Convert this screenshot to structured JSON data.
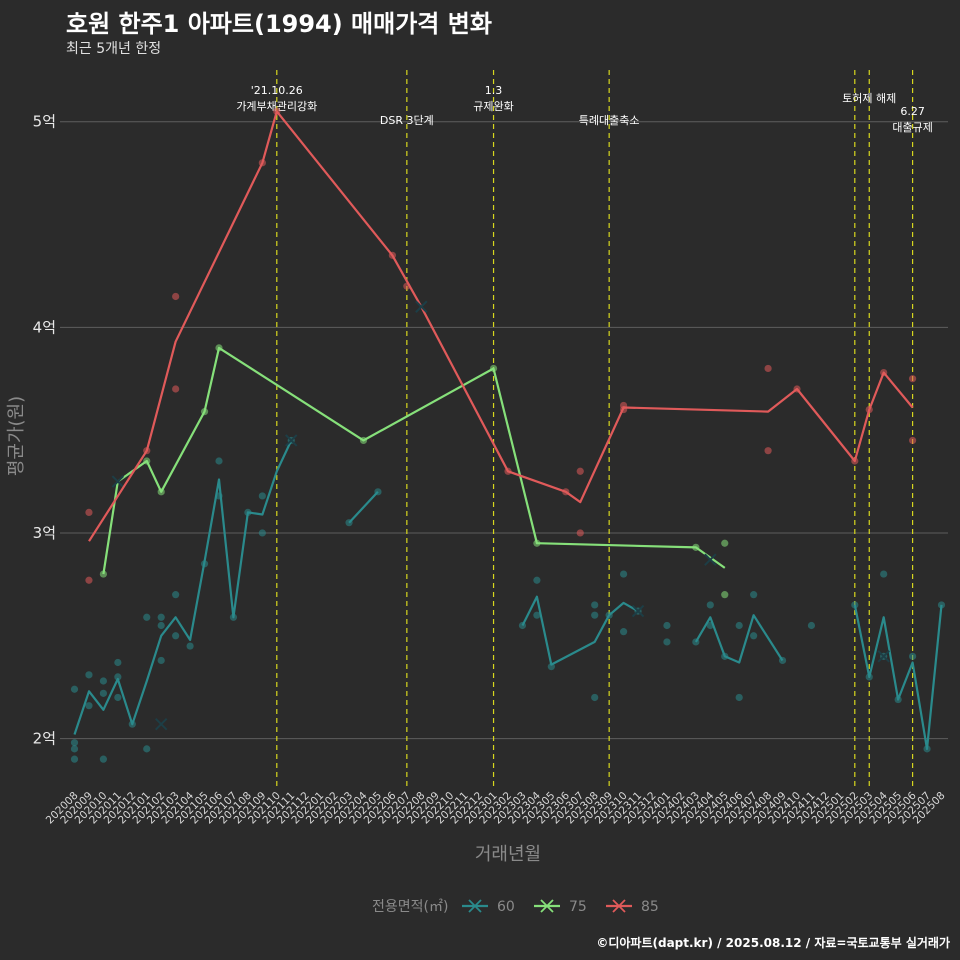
{
  "header": {
    "title": "호원 한주1 아파트(1994) 매매가격 변화",
    "subtitle": "최근 5개년 한정"
  },
  "caption": "©디아파트(dapt.kr) / 2025.08.12 / 자료=국토교통부 실거래가",
  "colors": {
    "background": "#2b2b2b",
    "grid": "#5e5e5e",
    "event_line": "#d7d71e",
    "60": "#2a8a8c",
    "75": "#86e07a",
    "85": "#e05a5a"
  },
  "chart_data": {
    "type": "line",
    "title": "호원 한주1 아파트(1994) 매매가격 변화",
    "subtitle": "최근 5개년 한정",
    "xlabel": "거래년월",
    "ylabel": "평균가(원)",
    "ylim": [
      1.75,
      5.3
    ],
    "yticks": [
      {
        "v": 2,
        "label": "2억"
      },
      {
        "v": 3,
        "label": "3억"
      },
      {
        "v": 4,
        "label": "4억"
      },
      {
        "v": 5,
        "label": "5억"
      }
    ],
    "grid": "horizontal",
    "categories": [
      "202008",
      "202009",
      "202010",
      "202011",
      "202012",
      "202101",
      "202102",
      "202103",
      "202104",
      "202105",
      "202106",
      "202107",
      "202108",
      "202109",
      "202110",
      "202111",
      "202112",
      "202201",
      "202202",
      "202203",
      "202204",
      "202205",
      "202206",
      "202207",
      "202208",
      "202209",
      "202210",
      "202211",
      "202212",
      "202301",
      "202302",
      "202303",
      "202304",
      "202305",
      "202306",
      "202307",
      "202308",
      "202309",
      "202310",
      "202311",
      "202312",
      "202401",
      "202402",
      "202403",
      "202404",
      "202405",
      "202406",
      "202407",
      "202408",
      "202409",
      "202410",
      "202411",
      "202412",
      "202501",
      "202502",
      "202503",
      "202504",
      "202505",
      "202506",
      "202507",
      "202508"
    ],
    "legend": {
      "title": "전용면적(㎡)",
      "position": "bottom",
      "entries": [
        "60",
        "75",
        "85"
      ]
    },
    "events": [
      {
        "x": "202110",
        "label": "'21.10.26\n가계부채관리강화",
        "row": 1
      },
      {
        "x": "202207",
        "label": "DSR 3단계",
        "row": 2
      },
      {
        "x": "202301",
        "label": "1.3\n규제완화",
        "row": 1
      },
      {
        "x": "202309",
        "label": "특례대출축소",
        "row": 2
      },
      {
        "x": "202502",
        "label": "",
        "row": 0
      },
      {
        "x": "202503",
        "label": "토허제 해제",
        "row": 3
      },
      {
        "x": "202506",
        "label": "6.27\n대출규제",
        "row": 4
      }
    ],
    "series": [
      {
        "name": "60",
        "segments": [
          [
            [
              "202008",
              2.02
            ],
            [
              "202009",
              2.23
            ],
            [
              "202010",
              2.14
            ],
            [
              "202011",
              2.29
            ],
            [
              "202012",
              2.07
            ],
            [
              "202101",
              2.28
            ],
            [
              "202102",
              2.5
            ],
            [
              "202103",
              2.59
            ],
            [
              "202104",
              2.48
            ],
            [
              "202105",
              2.86
            ],
            [
              "202106",
              3.26
            ],
            [
              "202107",
              2.59
            ],
            [
              "202108",
              3.1
            ],
            [
              "202109",
              3.09
            ],
            [
              "202110",
              3.3
            ],
            [
              "202111",
              3.45
            ]
          ],
          [
            [
              "202203",
              3.05
            ],
            [
              "202205",
              3.2
            ]
          ],
          [
            [
              "202303",
              2.55
            ],
            [
              "202304",
              2.69
            ],
            [
              "202305",
              2.36
            ],
            [
              "202308",
              2.47
            ],
            [
              "202309",
              2.6
            ],
            [
              "202310",
              2.66
            ],
            [
              "202311",
              2.62
            ]
          ],
          [
            [
              "202403",
              2.47
            ],
            [
              "202404",
              2.59
            ],
            [
              "202405",
              2.4
            ],
            [
              "202406",
              2.37
            ],
            [
              "202407",
              2.6
            ],
            [
              "202409",
              2.38
            ]
          ],
          [
            [
              "202502",
              2.65
            ],
            [
              "202503",
              2.3
            ],
            [
              "202504",
              2.59
            ],
            [
              "202505",
              2.19
            ],
            [
              "202506",
              2.37
            ],
            [
              "202507",
              1.95
            ],
            [
              "202508",
              2.65
            ]
          ]
        ],
        "points": [
          [
            "202008",
            1.9
          ],
          [
            "202008",
            1.95
          ],
          [
            "202008",
            1.98
          ],
          [
            "202008",
            2.24
          ],
          [
            "202009",
            2.16
          ],
          [
            "202009",
            2.31
          ],
          [
            "202010",
            1.9
          ],
          [
            "202010",
            2.22
          ],
          [
            "202010",
            2.28
          ],
          [
            "202011",
            2.2
          ],
          [
            "202011",
            2.3
          ],
          [
            "202011",
            2.37
          ],
          [
            "202012",
            2.07
          ],
          [
            "202101",
            1.95
          ],
          [
            "202101",
            2.59
          ],
          [
            "202102",
            2.38
          ],
          [
            "202102",
            2.55
          ],
          [
            "202102",
            2.59
          ],
          [
            "202103",
            2.5
          ],
          [
            "202103",
            2.7
          ],
          [
            "202104",
            2.45
          ],
          [
            "202105",
            2.85
          ],
          [
            "202106",
            3.18
          ],
          [
            "202106",
            3.35
          ],
          [
            "202107",
            2.59
          ],
          [
            "202108",
            3.1
          ],
          [
            "202109",
            3.0
          ],
          [
            "202109",
            3.18
          ],
          [
            "202111",
            3.45
          ],
          [
            "202203",
            3.05
          ],
          [
            "202205",
            3.2
          ],
          [
            "202303",
            2.55
          ],
          [
            "202304",
            2.6
          ],
          [
            "202304",
            2.77
          ],
          [
            "202305",
            2.35
          ],
          [
            "202308",
            2.2
          ],
          [
            "202308",
            2.6
          ],
          [
            "202308",
            2.65
          ],
          [
            "202309",
            2.6
          ],
          [
            "202310",
            2.52
          ],
          [
            "202310",
            2.8
          ],
          [
            "202311",
            2.62
          ],
          [
            "202401",
            2.47
          ],
          [
            "202401",
            2.55
          ],
          [
            "202403",
            2.47
          ],
          [
            "202404",
            2.55
          ],
          [
            "202404",
            2.65
          ],
          [
            "202405",
            2.4
          ],
          [
            "202406",
            2.2
          ],
          [
            "202406",
            2.55
          ],
          [
            "202407",
            2.5
          ],
          [
            "202407",
            2.7
          ],
          [
            "202409",
            2.38
          ],
          [
            "202411",
            2.55
          ],
          [
            "202502",
            2.65
          ],
          [
            "202503",
            2.3
          ],
          [
            "202504",
            2.4
          ],
          [
            "202504",
            2.8
          ],
          [
            "202505",
            2.19
          ],
          [
            "202506",
            2.4
          ],
          [
            "202507",
            1.95
          ],
          [
            "202508",
            2.65
          ]
        ],
        "crosses": [
          [
            "202102",
            2.07
          ],
          [
            "202111",
            3.45
          ],
          [
            "202311",
            2.62
          ],
          [
            "202504",
            2.4
          ]
        ]
      },
      {
        "name": "75",
        "segments": [
          [
            [
              "202010",
              2.8
            ],
            [
              "202011",
              3.25
            ],
            [
              "202101",
              3.35
            ],
            [
              "202102",
              3.2
            ],
            [
              "202105",
              3.59
            ],
            [
              "202106",
              3.9
            ],
            [
              "202204",
              3.45
            ],
            [
              "202301",
              3.8
            ],
            [
              "202304",
              2.95
            ],
            [
              "202403",
              2.93
            ],
            [
              "202405",
              2.83
            ]
          ]
        ],
        "points": [
          [
            "202010",
            2.8
          ],
          [
            "202101",
            3.35
          ],
          [
            "202102",
            3.2
          ],
          [
            "202105",
            3.59
          ],
          [
            "202106",
            3.9
          ],
          [
            "202204",
            3.45
          ],
          [
            "202301",
            3.8
          ],
          [
            "202304",
            2.95
          ],
          [
            "202403",
            2.93
          ],
          [
            "202405",
            2.95
          ],
          [
            "202405",
            2.7
          ]
        ],
        "crosses": [
          [
            "202011",
            3.25
          ],
          [
            "202404",
            2.87
          ]
        ]
      },
      {
        "name": "85",
        "segments": [
          [
            [
              "202009",
              2.96
            ],
            [
              "202101",
              3.4
            ],
            [
              "202103",
              3.93
            ],
            [
              "202109",
              4.8
            ],
            [
              "202110",
              5.05
            ],
            [
              "202206",
              4.35
            ],
            [
              "202208",
              4.1
            ],
            [
              "202302",
              3.3
            ],
            [
              "202306",
              3.2
            ],
            [
              "202307",
              3.15
            ],
            [
              "202310",
              3.61
            ],
            [
              "202408",
              3.59
            ],
            [
              "202410",
              3.7
            ],
            [
              "202502",
              3.35
            ],
            [
              "202503",
              3.6
            ],
            [
              "202504",
              3.78
            ],
            [
              "202506",
              3.61
            ]
          ]
        ],
        "points": [
          [
            "202009",
            2.77
          ],
          [
            "202009",
            3.1
          ],
          [
            "202101",
            3.4
          ],
          [
            "202103",
            3.7
          ],
          [
            "202103",
            4.15
          ],
          [
            "202109",
            4.8
          ],
          [
            "202110",
            5.05
          ],
          [
            "202206",
            4.35
          ],
          [
            "202207",
            4.2
          ],
          [
            "202302",
            3.3
          ],
          [
            "202306",
            3.2
          ],
          [
            "202307",
            3.0
          ],
          [
            "202307",
            3.3
          ],
          [
            "202310",
            3.6
          ],
          [
            "202310",
            3.62
          ],
          [
            "202408",
            3.4
          ],
          [
            "202408",
            3.8
          ],
          [
            "202410",
            3.7
          ],
          [
            "202502",
            3.35
          ],
          [
            "202503",
            3.6
          ],
          [
            "202504",
            3.78
          ],
          [
            "202506",
            3.45
          ],
          [
            "202506",
            3.75
          ]
        ],
        "crosses": [
          [
            "202208",
            4.1
          ]
        ]
      }
    ]
  }
}
